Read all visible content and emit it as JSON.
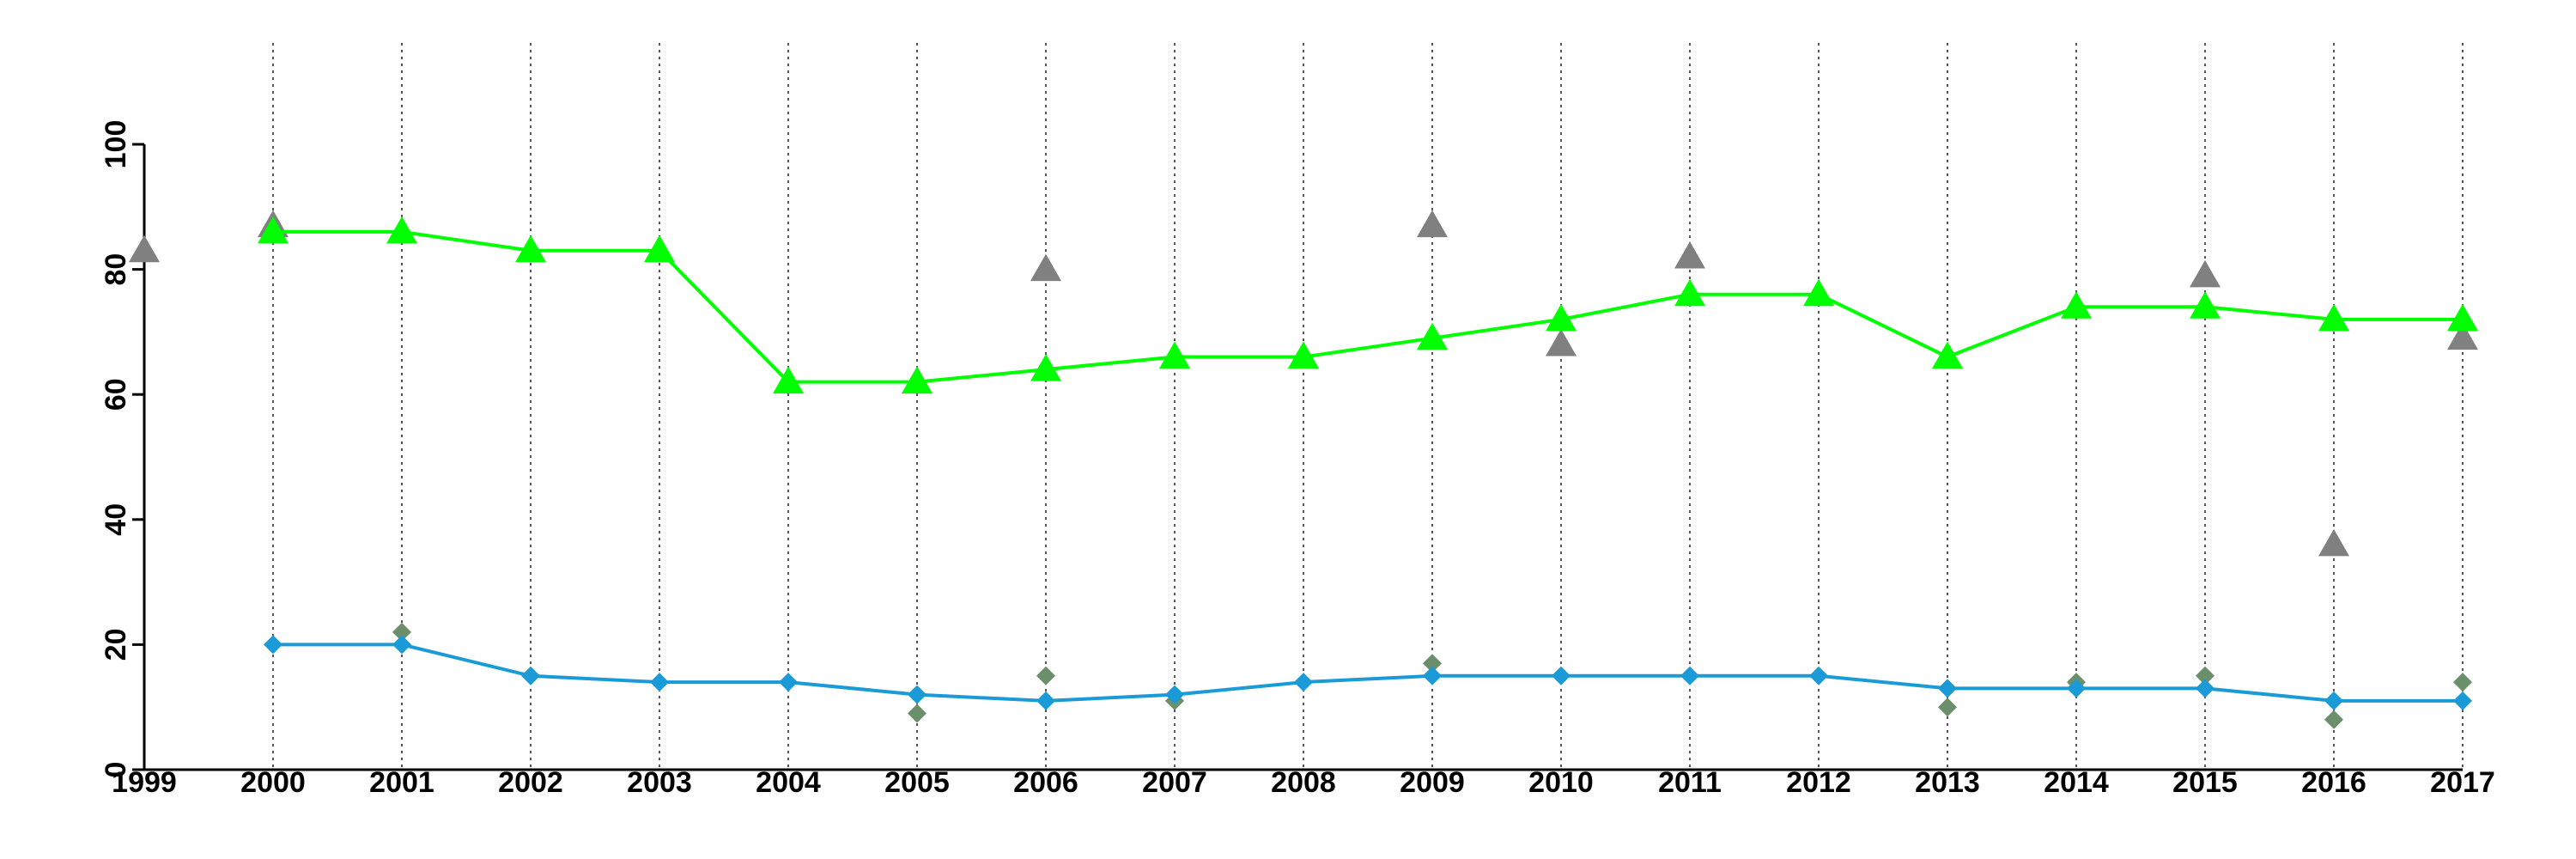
{
  "chart_data": {
    "type": "line",
    "x": [
      1999,
      2000,
      2001,
      2002,
      2003,
      2004,
      2005,
      2006,
      2007,
      2008,
      2009,
      2010,
      2011,
      2012,
      2013,
      2014,
      2015,
      2016,
      2017
    ],
    "x_tick_labels": [
      "1999",
      "2000",
      "2001",
      "2002",
      "2003",
      "2004",
      "2005",
      "2006",
      "2007",
      "2008",
      "2009",
      "2010",
      "2011",
      "2012",
      "2013",
      "2014",
      "2015",
      "2016",
      "2017"
    ],
    "y_ticks": [
      0,
      20,
      40,
      60,
      80,
      100
    ],
    "y_tick_labels": [
      "0",
      "20",
      "40",
      "60",
      "80",
      "100"
    ],
    "xlim": [
      1999,
      2017
    ],
    "ylim": [
      0,
      100
    ],
    "vertical_grid": "dotted, at each year from 2000 to 2017",
    "legend": "none",
    "title": "",
    "xlabel": "",
    "ylabel": "",
    "series": [
      {
        "marker": "triangle",
        "style": "line",
        "color": "#00ff00",
        "x": [
          2000,
          2001,
          2002,
          2003,
          2004,
          2005,
          2006,
          2007,
          2008,
          2009,
          2010,
          2011,
          2012,
          2013,
          2014,
          2015,
          2016,
          2017
        ],
        "values": [
          86,
          86,
          83,
          83,
          62,
          62,
          64,
          66,
          66,
          69,
          72,
          76,
          76,
          66,
          74,
          74,
          72,
          72
        ]
      },
      {
        "marker": "triangle",
        "style": "points",
        "color": "#808080",
        "x": [
          1999,
          2000,
          2005,
          2006,
          2008,
          2009,
          2010,
          2011,
          2015,
          2016,
          2017
        ],
        "values": [
          83,
          87,
          62,
          80,
          66,
          87,
          68,
          82,
          79,
          36,
          69
        ]
      },
      {
        "marker": "diamond",
        "style": "line",
        "color": "#1a9bd7",
        "x": [
          2000,
          2001,
          2002,
          2003,
          2004,
          2005,
          2006,
          2007,
          2008,
          2009,
          2010,
          2011,
          2012,
          2013,
          2014,
          2015,
          2016,
          2017
        ],
        "values": [
          20,
          20,
          15,
          14,
          14,
          12,
          11,
          12,
          14,
          15,
          15,
          15,
          15,
          13,
          13,
          13,
          11,
          11
        ]
      },
      {
        "marker": "diamond",
        "style": "points",
        "color": "#6b8e6b",
        "x": [
          2001,
          2005,
          2006,
          2007,
          2009,
          2013,
          2014,
          2015,
          2016,
          2017
        ],
        "values": [
          22,
          9,
          15,
          11,
          17,
          10,
          14,
          15,
          8,
          14
        ]
      }
    ]
  }
}
